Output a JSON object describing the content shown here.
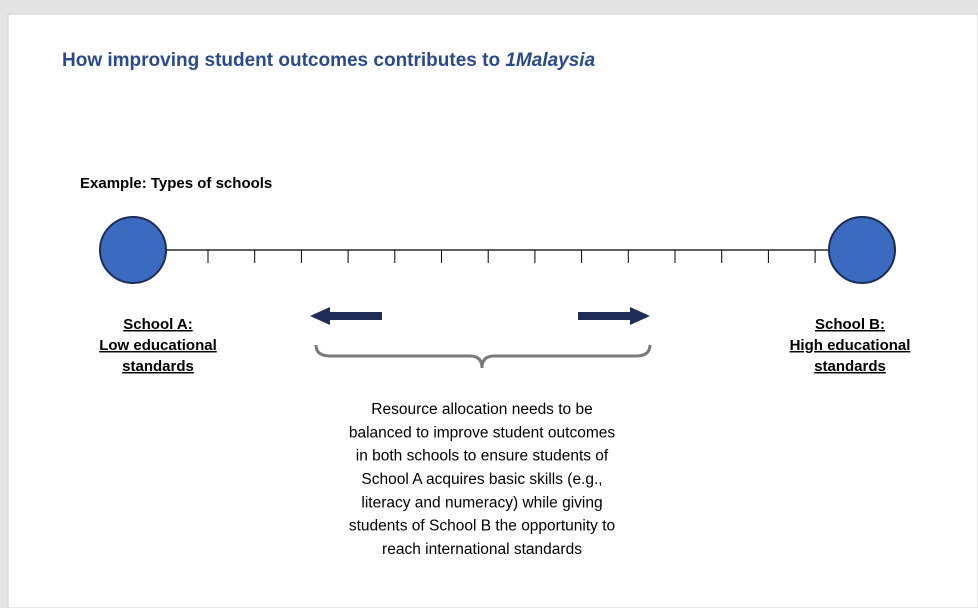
{
  "title": {
    "text": "How improving student outcomes contributes to ",
    "emphasis": "1Malaysia"
  },
  "example_label": "Example: Types of schools",
  "school_a": {
    "lines": [
      "School A:",
      "Low educational",
      "standards"
    ]
  },
  "school_b": {
    "lines": [
      "School B:",
      "High educational",
      "standards"
    ]
  },
  "description": {
    "lines": [
      "Resource allocation needs to be",
      "balanced to improve student outcomes",
      "in both schools to ensure students of",
      "School A acquires basic skills (e.g.,",
      "literacy and numeracy) while giving",
      "students of School B the opportunity to",
      "reach international standards"
    ]
  }
}
